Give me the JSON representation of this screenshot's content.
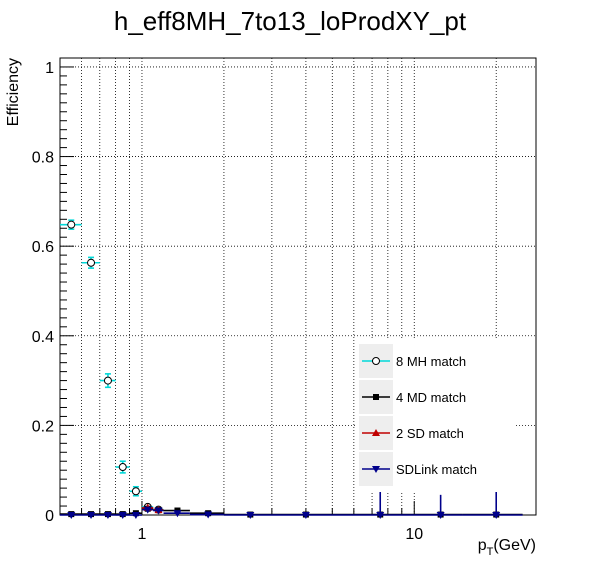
{
  "chart_data": {
    "type": "scatter",
    "title": "h_eff8MH_7to13_loProdXY_pt",
    "xlabel_main": "p",
    "xlabel_sub": "T",
    "xlabel_unit": "(GeV)",
    "ylabel": "Efficiency",
    "xscale": "log",
    "xlim": [
      0.5,
      28
    ],
    "ylim": [
      0,
      1.02
    ],
    "x_ticks": [
      {
        "value": 1,
        "label": "1"
      },
      {
        "value": 10,
        "label": "10"
      }
    ],
    "y_ticks": [
      {
        "value": 0,
        "label": "0"
      },
      {
        "value": 0.2,
        "label": "0.2"
      },
      {
        "value": 0.4,
        "label": "0.4"
      },
      {
        "value": 0.6,
        "label": "0.6"
      },
      {
        "value": 0.8,
        "label": "0.8"
      },
      {
        "value": 1,
        "label": "1"
      }
    ],
    "grid": true,
    "legend_position": "right",
    "series": [
      {
        "name": "8 MH match",
        "color": "#00d8d8",
        "marker": "open-circle",
        "points": [
          {
            "x": 0.55,
            "xlo": 0.5,
            "xhi": 0.6,
            "y": 0.648,
            "err": 0.01
          },
          {
            "x": 0.65,
            "xlo": 0.6,
            "xhi": 0.7,
            "y": 0.563,
            "err": 0.012
          },
          {
            "x": 0.75,
            "xlo": 0.7,
            "xhi": 0.8,
            "y": 0.3,
            "err": 0.015
          },
          {
            "x": 0.85,
            "xlo": 0.8,
            "xhi": 0.9,
            "y": 0.107,
            "err": 0.013
          },
          {
            "x": 0.95,
            "xlo": 0.9,
            "xhi": 1.0,
            "y": 0.053,
            "err": 0.01
          },
          {
            "x": 1.05,
            "xlo": 1.0,
            "xhi": 1.1,
            "y": 0.018,
            "err": 0.008
          },
          {
            "x": 1.15,
            "xlo": 1.1,
            "xhi": 1.2,
            "y": 0.012,
            "err": 0.006
          }
        ]
      },
      {
        "name": "4 MD match",
        "color": "#000000",
        "marker": "square",
        "points": [
          {
            "x": 0.55,
            "xlo": 0.5,
            "xhi": 0.6,
            "y": 0.002,
            "err": 0.002
          },
          {
            "x": 0.65,
            "xlo": 0.6,
            "xhi": 0.7,
            "y": 0.002,
            "err": 0.002
          },
          {
            "x": 0.75,
            "xlo": 0.7,
            "xhi": 0.8,
            "y": 0.002,
            "err": 0.002
          },
          {
            "x": 0.85,
            "xlo": 0.8,
            "xhi": 0.9,
            "y": 0.002,
            "err": 0.002
          },
          {
            "x": 0.95,
            "xlo": 0.9,
            "xhi": 1.0,
            "y": 0.004,
            "err": 0.003
          },
          {
            "x": 1.05,
            "xlo": 1.0,
            "xhi": 1.1,
            "y": 0.014,
            "err": 0.006
          },
          {
            "x": 1.15,
            "xlo": 1.1,
            "xhi": 1.2,
            "y": 0.011,
            "err": 0.005
          },
          {
            "x": 1.35,
            "xlo": 1.2,
            "xhi": 1.5,
            "y": 0.01,
            "err": 0.004
          },
          {
            "x": 1.75,
            "xlo": 1.5,
            "xhi": 2.0,
            "y": 0.004,
            "err": 0.003
          },
          {
            "x": 2.5,
            "xlo": 2.0,
            "xhi": 3.0,
            "y": 0.001,
            "err": 0.002
          },
          {
            "x": 4.0,
            "xlo": 3.0,
            "xhi": 5.0,
            "y": 0.001,
            "err": 0.002
          },
          {
            "x": 7.5,
            "xlo": 5.0,
            "xhi": 10.0,
            "y": 0.001,
            "err": 0.002
          },
          {
            "x": 12.5,
            "xlo": 10.0,
            "xhi": 15.0,
            "y": 0.001,
            "err": 0.002
          },
          {
            "x": 20.0,
            "xlo": 15.0,
            "xhi": 25.0,
            "y": 0.001,
            "err": 0.002
          }
        ]
      },
      {
        "name": "2 SD match",
        "color": "#c00000",
        "marker": "triangle-up",
        "points": [
          {
            "x": 1.05,
            "xlo": 1.0,
            "xhi": 1.1,
            "y": 0.016,
            "err": 0.008
          },
          {
            "x": 1.15,
            "xlo": 1.1,
            "xhi": 1.2,
            "y": 0.011,
            "err": 0.005
          }
        ]
      },
      {
        "name": "SDLink match",
        "color": "#00008b",
        "marker": "triangle-down",
        "points": [
          {
            "x": 0.55,
            "xlo": 0.5,
            "xhi": 0.6,
            "y": 0.0,
            "err": 0.002
          },
          {
            "x": 0.65,
            "xlo": 0.6,
            "xhi": 0.7,
            "y": 0.0,
            "err": 0.002
          },
          {
            "x": 0.75,
            "xlo": 0.7,
            "xhi": 0.8,
            "y": 0.0,
            "err": 0.002
          },
          {
            "x": 0.85,
            "xlo": 0.8,
            "xhi": 0.9,
            "y": 0.0,
            "err": 0.002
          },
          {
            "x": 0.95,
            "xlo": 0.9,
            "xhi": 1.0,
            "y": 0.0,
            "err": 0.002
          },
          {
            "x": 1.05,
            "xlo": 1.0,
            "xhi": 1.1,
            "y": 0.012,
            "err": 0.006
          },
          {
            "x": 1.15,
            "xlo": 1.1,
            "xhi": 1.2,
            "y": 0.01,
            "err": 0.005
          },
          {
            "x": 1.35,
            "xlo": 1.2,
            "xhi": 1.5,
            "y": 0.004,
            "err": 0.003
          },
          {
            "x": 1.75,
            "xlo": 1.5,
            "xhi": 2.0,
            "y": 0.001,
            "err": 0.002
          },
          {
            "x": 2.5,
            "xlo": 2.0,
            "xhi": 3.0,
            "y": 0.0,
            "err": 0.002
          },
          {
            "x": 4.0,
            "xlo": 3.0,
            "xhi": 5.0,
            "y": 0.0,
            "err": 0.002
          },
          {
            "x": 7.5,
            "xlo": 5.0,
            "xhi": 10.0,
            "y": 0.0,
            "err": 0.055
          },
          {
            "x": 12.5,
            "xlo": 10.0,
            "xhi": 15.0,
            "y": 0.0,
            "err": 0.045
          },
          {
            "x": 20.0,
            "xlo": 15.0,
            "xhi": 25.0,
            "y": 0.0,
            "err": 0.06
          }
        ]
      }
    ]
  }
}
